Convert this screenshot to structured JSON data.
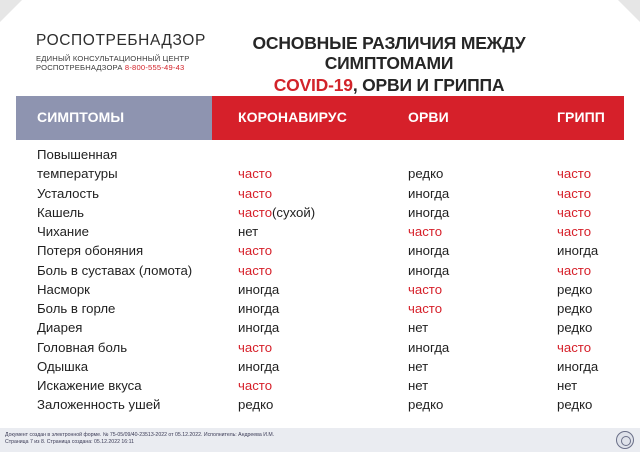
{
  "header": {
    "org_name": "РОСПОТРЕБНАДЗОР",
    "org_sub_line1": "ЕДИНЫЙ КОНСУЛЬТАЦИОННЫЙ ЦЕНТР",
    "org_sub_line2": "РОСПОТРЕБНАДЗОРА",
    "phone": "8-800-555-49-43",
    "title_line1": "ОСНОВНЫЕ РАЗЛИЧИЯ МЕЖДУ СИМПТОМАМИ",
    "title_line2_red": "COVID-19",
    "title_line2_rest": ", ОРВИ И ГРИППА"
  },
  "table": {
    "columns": [
      "СИМПТОМЫ",
      "КОРОНАВИРУС",
      "ОРВИ",
      "ГРИПП"
    ],
    "rows": [
      {
        "symptom_line1": "Повышенная",
        "symptom": "температуры",
        "covid": "часто",
        "orvi": "редко",
        "flu": "часто"
      },
      {
        "symptom": "Усталость",
        "covid": "часто",
        "orvi": "иногда",
        "flu": "часто"
      },
      {
        "symptom": "Кашель",
        "covid": "часто",
        "covid_extra": "(сухой)",
        "orvi": "иногда",
        "flu": "часто"
      },
      {
        "symptom": "Чихание",
        "covid": "нет",
        "orvi": "часто",
        "flu": "часто"
      },
      {
        "symptom": "Потеря обоняния",
        "covid": "часто",
        "orvi": "иногда",
        "flu": "иногда"
      },
      {
        "symptom": "Боль в суставах (ломота)",
        "covid": "часто",
        "orvi": "иногда",
        "flu": "часто"
      },
      {
        "symptom": "Насморк",
        "covid": "иногда",
        "orvi": "часто",
        "flu": "редко"
      },
      {
        "symptom": "Боль в горле",
        "covid": "иногда",
        "orvi": "часто",
        "flu": "редко"
      },
      {
        "symptom": "Диарея",
        "covid": "иногда",
        "orvi": "нет",
        "flu": "редко"
      },
      {
        "symptom": "Головная боль",
        "covid": "часто",
        "orvi": "иногда",
        "flu": "часто"
      },
      {
        "symptom": "Одышка",
        "covid": "иногда",
        "orvi": "нет",
        "flu": "иногда"
      },
      {
        "symptom": "Искажение вкуса",
        "covid": "часто",
        "orvi": "нет",
        "flu": "нет"
      },
      {
        "symptom": "Заложенность ушей",
        "covid": "редко",
        "orvi": "редко",
        "flu": "редко"
      }
    ]
  },
  "colors": {
    "red": "#d6202a",
    "header_gray": "#8e94b0",
    "text": "#1f1f1f"
  },
  "footer": {
    "line1": "Документ создан в электронной форме. № 75-05/09/40-23513-2022 от 05.12.2022. Исполнитель: Андреева И.М.",
    "line2": "Страница 7 из 8. Страница создана: 05.12.2022 16:11"
  }
}
